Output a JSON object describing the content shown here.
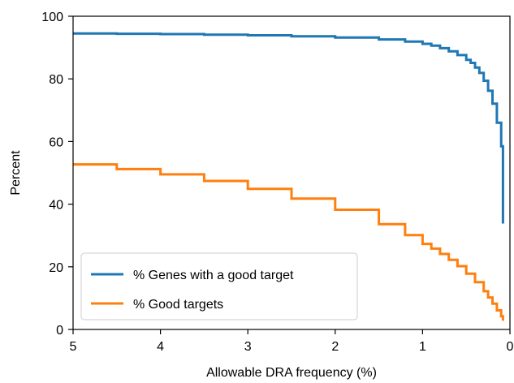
{
  "chart_data": {
    "type": "line",
    "title": "",
    "xlabel": "Allowable DRA frequency (%)",
    "ylabel": "Percent",
    "xlim": [
      5,
      0
    ],
    "ylim": [
      0,
      100
    ],
    "x_ticks": [
      5,
      4,
      3,
      2,
      1,
      0
    ],
    "x_tick_labels": [
      "5",
      "4",
      "3",
      "2",
      "1",
      "0"
    ],
    "y_ticks": [
      0,
      20,
      40,
      60,
      80,
      100
    ],
    "y_tick_labels": [
      "0",
      "20",
      "40",
      "60",
      "80",
      "100"
    ],
    "grid": false,
    "legend_position": "lower-left",
    "step": true,
    "series": [
      {
        "name": "% Genes with a good target",
        "color": "#1f77b4",
        "x": [
          5.0,
          4.5,
          4.0,
          3.5,
          3.0,
          2.5,
          2.0,
          1.5,
          1.2,
          1.0,
          0.9,
          0.8,
          0.7,
          0.6,
          0.5,
          0.45,
          0.4,
          0.35,
          0.3,
          0.25,
          0.2,
          0.15,
          0.1,
          0.08
        ],
        "values": [
          94.5,
          94.4,
          94.3,
          94.1,
          93.9,
          93.6,
          93.2,
          92.6,
          91.9,
          91.2,
          90.6,
          89.8,
          88.8,
          87.6,
          86.1,
          85.1,
          83.6,
          81.9,
          79.4,
          76.2,
          72.1,
          66.0,
          58.5,
          33.8
        ]
      },
      {
        "name": "% Good targets",
        "color": "#ff7f0e",
        "x": [
          5.0,
          4.5,
          4.0,
          3.5,
          3.0,
          2.5,
          2.0,
          1.5,
          1.2,
          1.0,
          0.9,
          0.8,
          0.7,
          0.6,
          0.5,
          0.4,
          0.3,
          0.25,
          0.2,
          0.15,
          0.1,
          0.08
        ],
        "values": [
          52.7,
          51.2,
          49.5,
          47.4,
          44.9,
          41.8,
          38.2,
          33.6,
          30.1,
          27.3,
          25.8,
          24.1,
          22.2,
          20.2,
          17.8,
          15.1,
          12.2,
          10.2,
          8.2,
          6.1,
          4.2,
          2.8
        ]
      }
    ]
  }
}
